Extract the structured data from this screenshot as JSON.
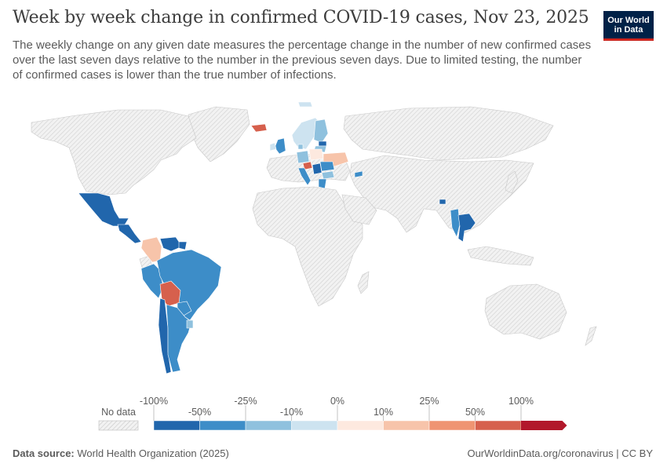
{
  "header": {
    "title": "Week by week change in confirmed COVID-19 cases, Nov 23, 2025",
    "subtitle": "The weekly change on any given date measures the percentage change in the number of new confirmed cases over the last seven days relative to the number in the previous seven days. Due to limited testing, the number of confirmed cases is lower than the true number of infections."
  },
  "logo": {
    "line1": "Our World",
    "line2": "in Data"
  },
  "colors": {
    "no_data": "#e8e8e8",
    "bins": [
      "#2166ac",
      "#3d8dc8",
      "#8fc1de",
      "#cde3f0",
      "#fde9df",
      "#f7c4aa",
      "#ef9472",
      "#d6604d",
      "#b2182b"
    ]
  },
  "chart_data": {
    "type": "choropleth",
    "title": "Week by week change in confirmed COVID-19 cases, Nov 23, 2025",
    "unit": "%",
    "legend": {
      "no_data_label": "No data",
      "breakpoints": [
        -100,
        -50,
        -25,
        -10,
        0,
        10,
        25,
        50,
        100
      ],
      "labels_upper": [
        "-100%",
        "-25%",
        "0%",
        "25%",
        "100%"
      ],
      "labels_lower": [
        "-50%",
        "-10%",
        "10%",
        "50%"
      ]
    },
    "regions": [
      {
        "name": "Greenland",
        "status": "no data"
      },
      {
        "name": "North America",
        "status": "no data"
      },
      {
        "name": "Mexico",
        "bin": "-100% to -50%"
      },
      {
        "name": "Central America",
        "bin": "-100% to -50%"
      },
      {
        "name": "Colombia",
        "bin": "10% to 25%"
      },
      {
        "name": "Venezuela",
        "bin": "-100% to -50%"
      },
      {
        "name": "Guyana",
        "bin": "-100% to -50%"
      },
      {
        "name": "Ecuador",
        "status": "no data"
      },
      {
        "name": "Peru",
        "bin": "-50% to -25%"
      },
      {
        "name": "Brazil",
        "bin": "-50% to -25%"
      },
      {
        "name": "Bolivia",
        "bin": "50% to 100%"
      },
      {
        "name": "Paraguay",
        "bin": "-50% to -25%"
      },
      {
        "name": "Chile",
        "bin": "-100% to -50%"
      },
      {
        "name": "Argentina",
        "bin": "-50% to -25%"
      },
      {
        "name": "Uruguay",
        "bin": "-25% to -10%"
      },
      {
        "name": "Iceland",
        "bin": "50% to 100%"
      },
      {
        "name": "Svalbard",
        "bin": "-10% to 0%"
      },
      {
        "name": "Norway",
        "bin": "-10% to 0%"
      },
      {
        "name": "Sweden",
        "bin": "-10% to 0%"
      },
      {
        "name": "Finland",
        "bin": "-25% to -10%"
      },
      {
        "name": "Estonia",
        "bin": "-100% to -50%"
      },
      {
        "name": "Latvia",
        "bin": "-25% to -10%"
      },
      {
        "name": "Lithuania",
        "bin": "-10% to 0%"
      },
      {
        "name": "United Kingdom",
        "bin": "-50% to -25%"
      },
      {
        "name": "Ireland",
        "bin": "-10% to 0%"
      },
      {
        "name": "Denmark",
        "bin": "-25% to -10%"
      },
      {
        "name": "Poland",
        "bin": "0% to 10%"
      },
      {
        "name": "Germany",
        "bin": "-25% to -10%"
      },
      {
        "name": "Ukraine",
        "bin": "10% to 25%"
      },
      {
        "name": "Italy",
        "bin": "-50% to -25%"
      },
      {
        "name": "Slovenia",
        "bin": "50% to 100%"
      },
      {
        "name": "Serbia",
        "bin": "-100% to -50%"
      },
      {
        "name": "Romania",
        "bin": "-50% to -25%"
      },
      {
        "name": "Bulgaria",
        "bin": "-25% to -10%"
      },
      {
        "name": "Greece",
        "bin": "-50% to -25%"
      },
      {
        "name": "Georgia",
        "bin": "-50% to -25%"
      },
      {
        "name": "Bhutan",
        "bin": "-100% to -50%"
      },
      {
        "name": "Myanmar",
        "bin": "-50% to -25%"
      },
      {
        "name": "Thailand",
        "bin": "-100% to -50%"
      },
      {
        "name": "Laos",
        "bin": "-100% to -50%"
      },
      {
        "name": "Russia",
        "status": "no data"
      },
      {
        "name": "Asia (rest)",
        "status": "no data"
      },
      {
        "name": "Africa",
        "status": "no data"
      },
      {
        "name": "Australia",
        "status": "no data"
      }
    ]
  },
  "footer": {
    "source_label": "Data source:",
    "source_value": "World Health Organization (2025)",
    "link": "OurWorldinData.org/coronavirus",
    "separator": "|",
    "license": "CC BY"
  }
}
